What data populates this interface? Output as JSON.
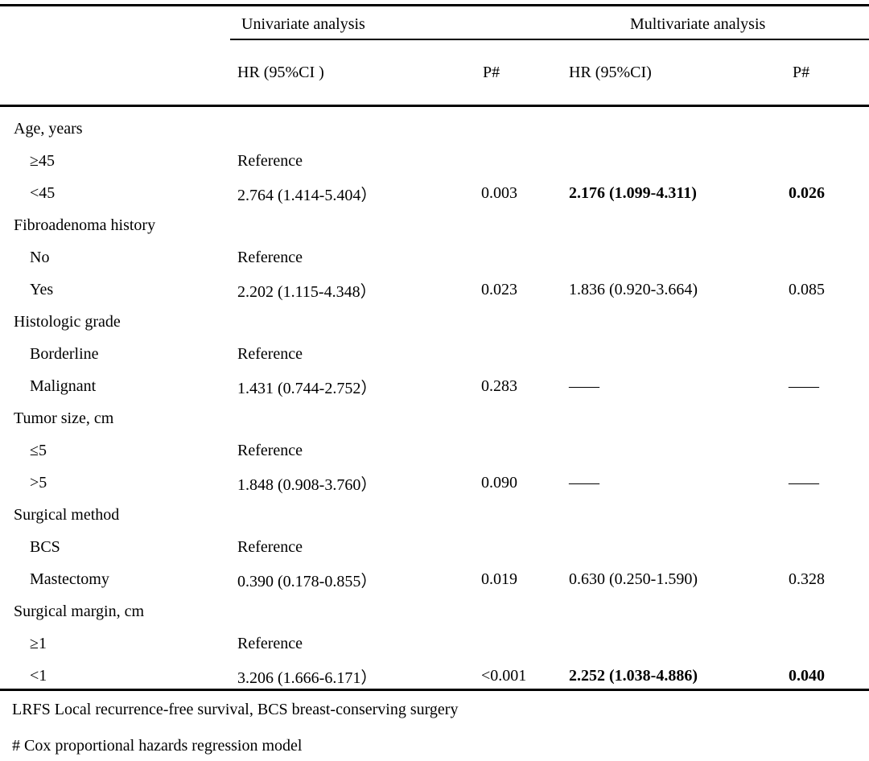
{
  "colors": {
    "background": "#ffffff",
    "text": "#000000",
    "rule": "#000000"
  },
  "table": {
    "col_groups": [
      {
        "label": "Univariate analysis"
      },
      {
        "label": "Multivariate analysis"
      }
    ],
    "sub_headers": [
      "HR (95%CI )",
      "P#",
      "HR (95%CI)",
      "P#"
    ],
    "rows": [
      {
        "label": "Age, years",
        "indent": false,
        "uni_hr": "",
        "uni_p": "",
        "multi_hr": "",
        "multi_p": "",
        "bold": false
      },
      {
        "label": "≥45",
        "indent": true,
        "uni_hr": "Reference",
        "uni_p": "",
        "multi_hr": "",
        "multi_p": "",
        "bold": false
      },
      {
        "label": "<45",
        "indent": true,
        "uni_hr": "2.764 (1.414-5.404）",
        "uni_p": "0.003",
        "multi_hr": "2.176 (1.099-4.311)",
        "multi_p": "0.026",
        "bold": true
      },
      {
        "label": "Fibroadenoma history",
        "indent": false,
        "uni_hr": "",
        "uni_p": "",
        "multi_hr": "",
        "multi_p": "",
        "bold": false
      },
      {
        "label": "No",
        "indent": true,
        "uni_hr": "Reference",
        "uni_p": "",
        "multi_hr": "",
        "multi_p": "",
        "bold": false
      },
      {
        "label": "Yes",
        "indent": true,
        "uni_hr": "2.202 (1.115-4.348）",
        "uni_p": "0.023",
        "multi_hr": "1.836 (0.920-3.664)",
        "multi_p": "0.085",
        "bold": false
      },
      {
        "label": "Histologic grade",
        "indent": false,
        "uni_hr": "",
        "uni_p": "",
        "multi_hr": "",
        "multi_p": "",
        "bold": false
      },
      {
        "label": "Borderline",
        "indent": true,
        "uni_hr": "Reference",
        "uni_p": "",
        "multi_hr": "",
        "multi_p": "",
        "bold": false
      },
      {
        "label": "Malignant",
        "indent": true,
        "uni_hr": "1.431 (0.744-2.752）",
        "uni_p": "0.283",
        "multi_hr": "——",
        "multi_p": "——",
        "bold": false
      },
      {
        "label": "Tumor size, cm",
        "indent": false,
        "uni_hr": "",
        "uni_p": "",
        "multi_hr": "",
        "multi_p": "",
        "bold": false
      },
      {
        "label": "≤5",
        "indent": true,
        "uni_hr": "Reference",
        "uni_p": "",
        "multi_hr": "",
        "multi_p": "",
        "bold": false
      },
      {
        "label": ">5",
        "indent": true,
        "uni_hr": "1.848 (0.908-3.760）",
        "uni_p": "0.090",
        "multi_hr": "——",
        "multi_p": "——",
        "bold": false
      },
      {
        "label": "Surgical method",
        "indent": false,
        "uni_hr": "",
        "uni_p": "",
        "multi_hr": "",
        "multi_p": "",
        "bold": false
      },
      {
        "label": "BCS",
        "indent": true,
        "uni_hr": "Reference",
        "uni_p": "",
        "multi_hr": "",
        "multi_p": "",
        "bold": false
      },
      {
        "label": "Mastectomy",
        "indent": true,
        "uni_hr": "0.390 (0.178-0.855）",
        "uni_p": "0.019",
        "multi_hr": "0.630 (0.250-1.590)",
        "multi_p": "0.328",
        "bold": false
      },
      {
        "label": "Surgical margin, cm",
        "indent": false,
        "uni_hr": "",
        "uni_p": "",
        "multi_hr": "",
        "multi_p": "",
        "bold": false
      },
      {
        "label": "≥1",
        "indent": true,
        "uni_hr": "Reference",
        "uni_p": "",
        "multi_hr": "",
        "multi_p": "",
        "bold": false
      },
      {
        "label": "<1",
        "indent": true,
        "uni_hr": "3.206 (1.666-6.171）",
        "uni_p": "<0.001",
        "multi_hr": "2.252 (1.038-4.886)",
        "multi_p": "0.040",
        "bold": true
      }
    ],
    "footnotes": [
      "LRFS Local recurrence-free survival, BCS breast-conserving surgery",
      "# Cox proportional hazards regression model"
    ]
  }
}
